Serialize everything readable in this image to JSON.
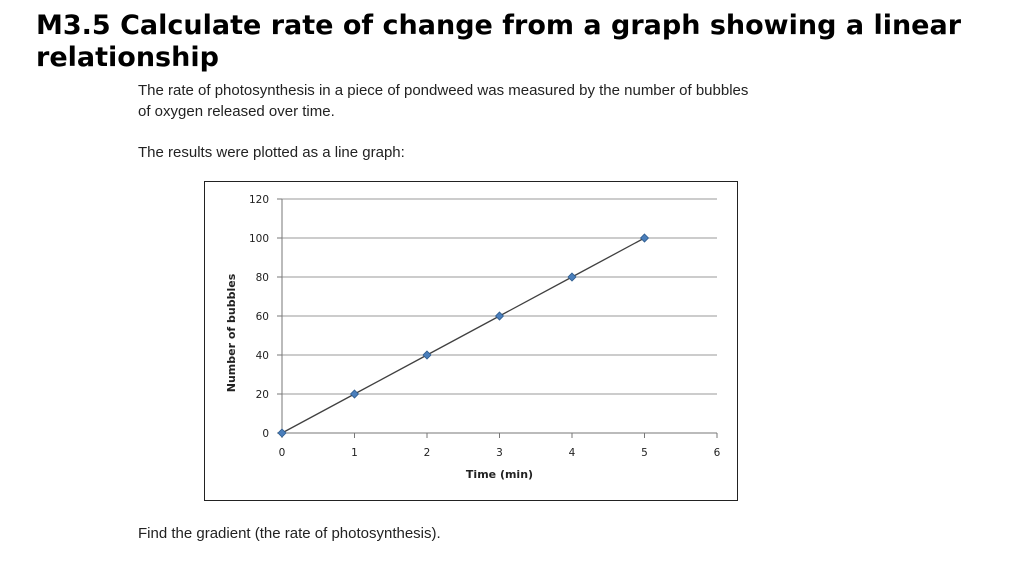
{
  "slide": {
    "title": "M3.5 Calculate rate of change from a graph showing a linear relationship",
    "intro_line1": "The rate of photosynthesis in a piece of pondweed was measured by the number of bubbles",
    "intro_line2": "of oxygen released over time.",
    "results_text": "The results were plotted as a line graph:",
    "question_text": "Find the gradient (the rate of photosynthesis)."
  },
  "colors": {
    "line": "#404040",
    "marker": "#4a7ebb",
    "marker_edge": "#2c5a8c",
    "grid": "#9a9a9a",
    "axis": "#777777"
  },
  "chart_data": {
    "type": "line",
    "xlabel": "Time (min)",
    "ylabel": "Number of bubbles",
    "xlim": [
      0,
      6
    ],
    "ylim": [
      0,
      120
    ],
    "xticks": [
      0,
      1,
      2,
      3,
      4,
      5,
      6
    ],
    "yticks": [
      0,
      20,
      40,
      60,
      80,
      100,
      120
    ],
    "grid": "horizontal",
    "legend": "none",
    "marker": "diamond",
    "x": [
      0,
      1,
      2,
      3,
      4,
      5
    ],
    "y": [
      0,
      20,
      40,
      60,
      80,
      100
    ]
  }
}
